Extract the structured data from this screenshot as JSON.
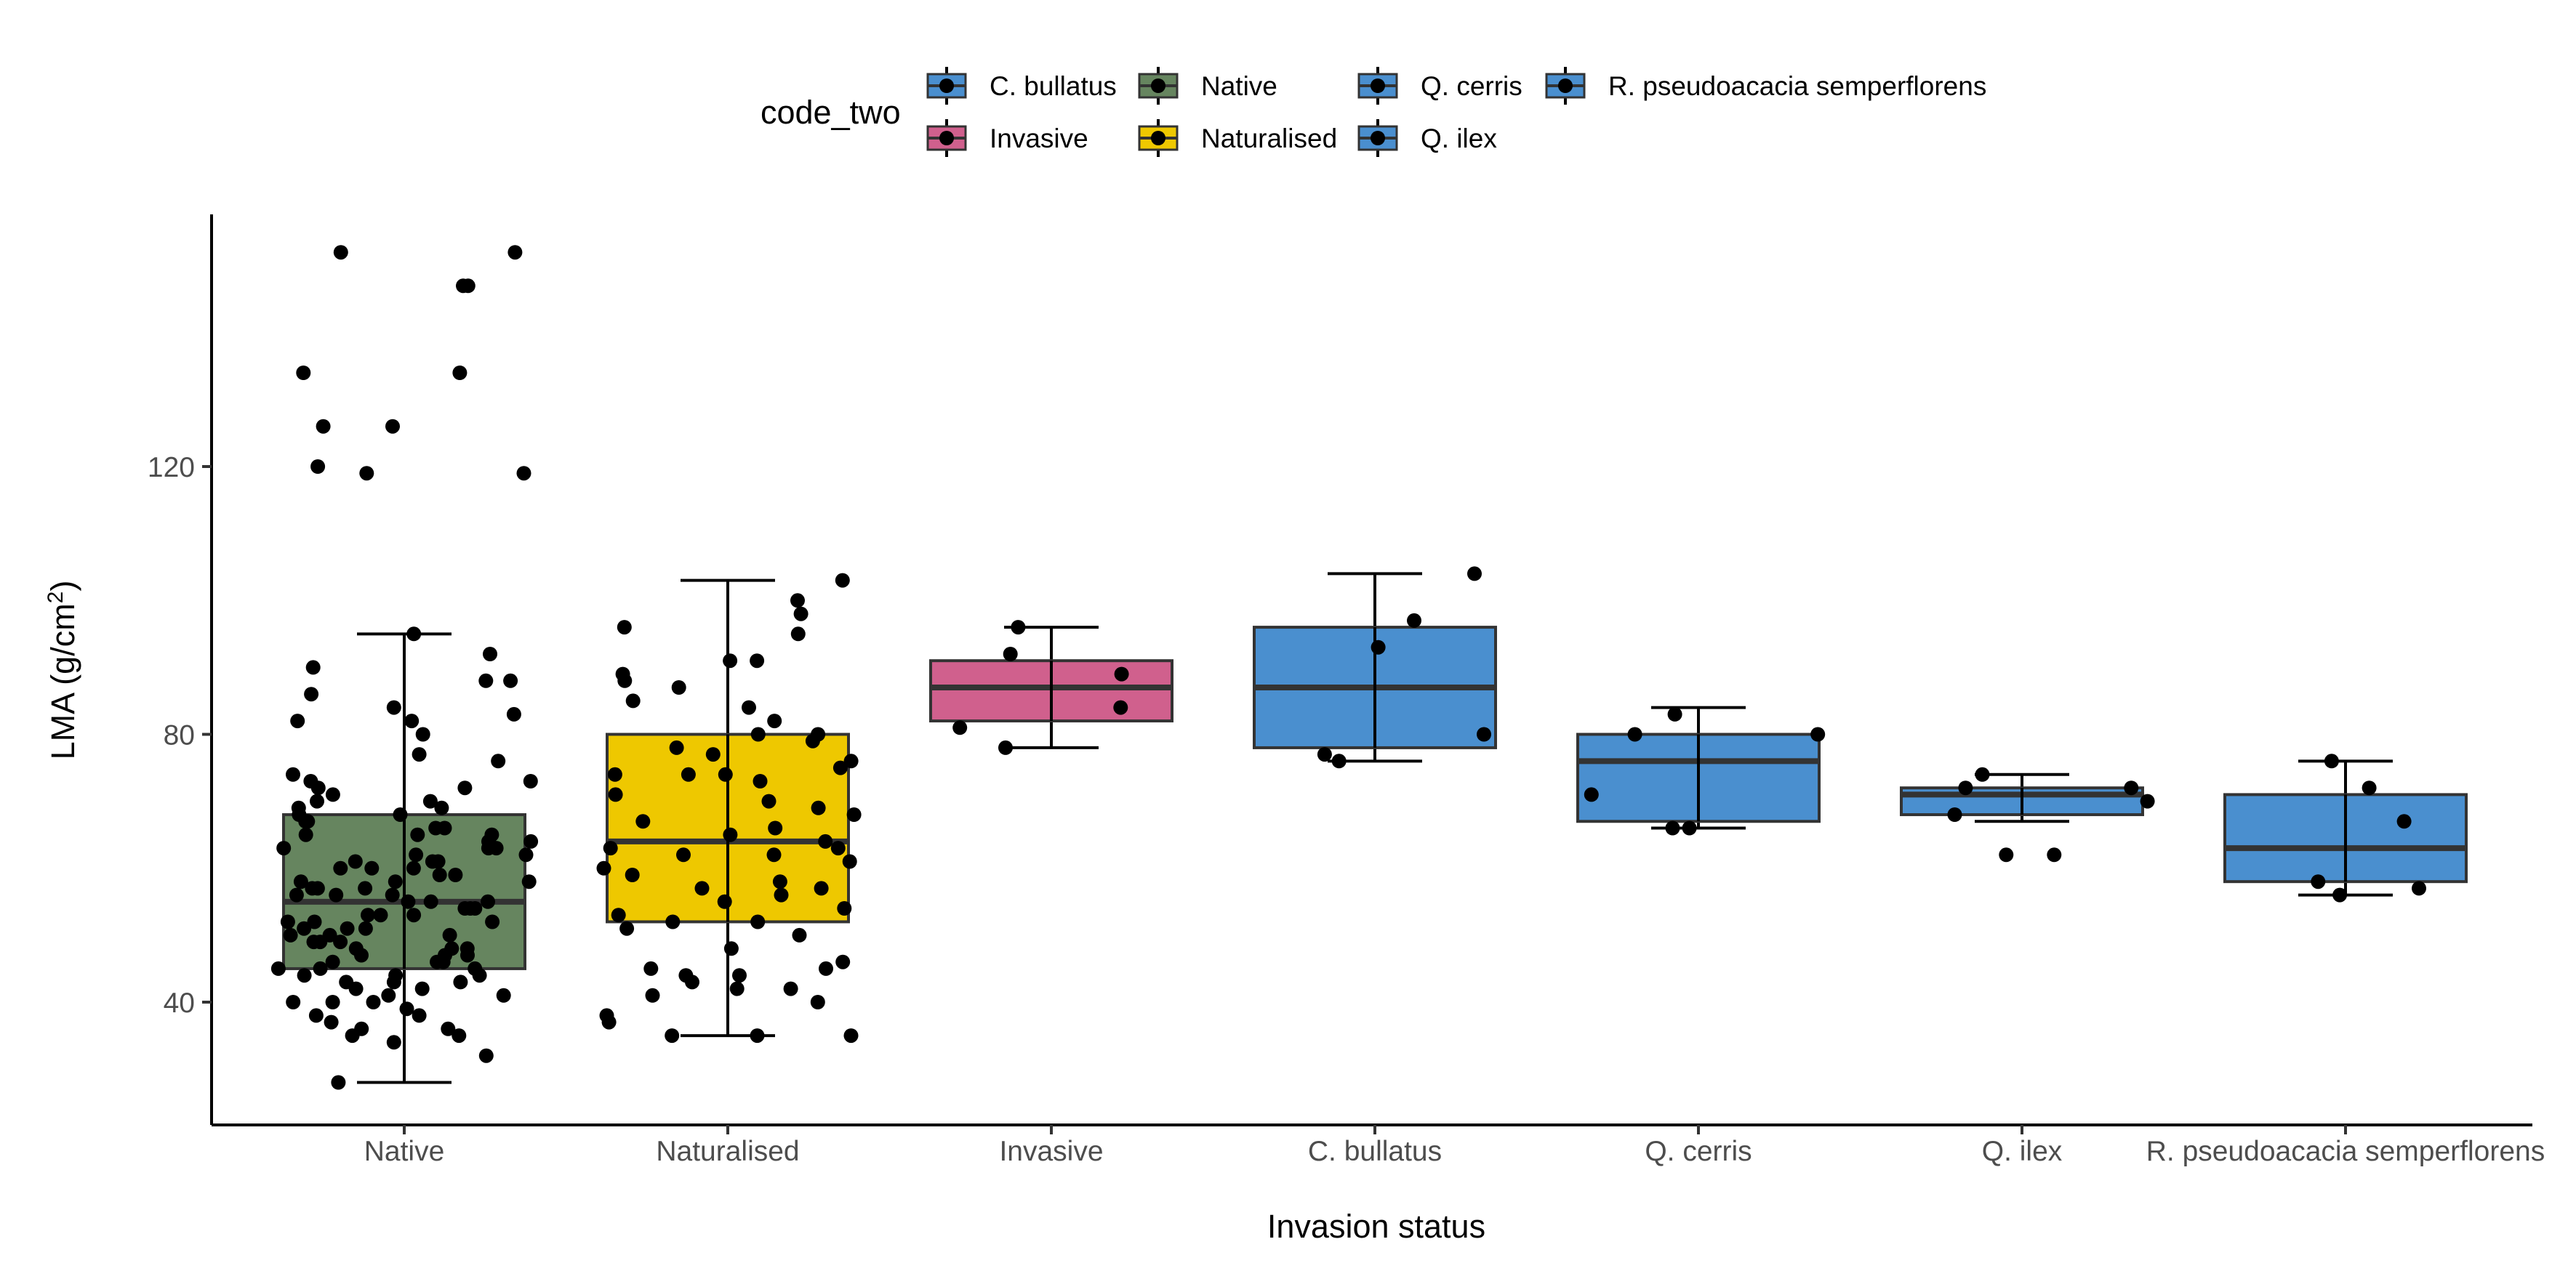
{
  "chart_data": {
    "type": "box",
    "xlabel": "Invasion status",
    "ylabel": "LMA (g/cm",
    "ylabel_superscript": "2",
    "ylabel_suffix": ")",
    "ylim": [
      22,
      153
    ],
    "yticks": [
      40,
      80,
      120
    ],
    "grid": false,
    "legend": {
      "title": "code_two",
      "position": "top",
      "entries": [
        {
          "label": "C. bullatus",
          "color": "#4a8fcf"
        },
        {
          "label": "Invasive",
          "color": "#d0608d"
        },
        {
          "label": "Native",
          "color": "#66855f"
        },
        {
          "label": "Naturalised",
          "color": "#eec800"
        },
        {
          "label": "Q. cerris",
          "color": "#4a8fcf"
        },
        {
          "label": "Q. ilex",
          "color": "#4a8fcf"
        },
        {
          "label": "R. pseudoacacia semperflorens",
          "color": "#4a8fcf"
        }
      ]
    },
    "categories": [
      "Native",
      "Naturalised",
      "Invasive",
      "C. bullatus",
      "Q. cerris",
      "Q. ilex",
      "R. pseudoacacia semperflorens"
    ],
    "boxes": [
      {
        "category": "Native",
        "color": "#66855f",
        "whisker_low": 28,
        "q1": 45,
        "median": 55,
        "q3": 68,
        "whisker_high": 95,
        "points": [
          28,
          32,
          34,
          35,
          35,
          36,
          36,
          37,
          38,
          38,
          39,
          40,
          40,
          40,
          41,
          41,
          42,
          42,
          43,
          43,
          43,
          44,
          44,
          44,
          45,
          45,
          45,
          46,
          46,
          46,
          47,
          47,
          47,
          48,
          48,
          48,
          49,
          49,
          49,
          50,
          50,
          50,
          51,
          51,
          51,
          52,
          52,
          52,
          53,
          53,
          53,
          54,
          54,
          54,
          55,
          55,
          55,
          56,
          56,
          56,
          57,
          57,
          57,
          58,
          58,
          58,
          59,
          59,
          60,
          60,
          60,
          61,
          61,
          61,
          62,
          62,
          63,
          63,
          63,
          64,
          64,
          65,
          65,
          65,
          66,
          66,
          67,
          67,
          68,
          68,
          69,
          69,
          70,
          70,
          71,
          72,
          72,
          73,
          73,
          74,
          76,
          77,
          80,
          82,
          82,
          83,
          84,
          86,
          88,
          88,
          90,
          92,
          95,
          119,
          119,
          120,
          126,
          126,
          134,
          134,
          147,
          147,
          152,
          152
        ]
      },
      {
        "category": "Naturalised",
        "color": "#eec800",
        "whisker_low": 35,
        "q1": 52,
        "median": 64,
        "q3": 80,
        "whisker_high": 103,
        "points": [
          35,
          35,
          35,
          37,
          38,
          40,
          41,
          42,
          42,
          43,
          44,
          44,
          45,
          45,
          46,
          48,
          50,
          51,
          52,
          52,
          53,
          54,
          55,
          56,
          57,
          57,
          58,
          59,
          60,
          61,
          62,
          62,
          63,
          63,
          64,
          65,
          66,
          67,
          68,
          69,
          70,
          71,
          73,
          74,
          74,
          74,
          75,
          76,
          77,
          78,
          79,
          80,
          80,
          82,
          84,
          85,
          87,
          88,
          89,
          91,
          91,
          95,
          96,
          98,
          100,
          103
        ]
      },
      {
        "category": "Invasive",
        "color": "#d0608d",
        "whisker_low": 78,
        "q1": 82,
        "median": 87,
        "q3": 91,
        "whisker_high": 96,
        "points": [
          78,
          81,
          84,
          89,
          92,
          96
        ]
      },
      {
        "category": "C. bullatus",
        "color": "#4a8fcf",
        "whisker_low": 76,
        "q1": 78,
        "median": 87,
        "q3": 96,
        "whisker_high": 104,
        "points": [
          76,
          77,
          80,
          93,
          97,
          104
        ]
      },
      {
        "category": "Q. cerris",
        "color": "#4a8fcf",
        "whisker_low": 66,
        "q1": 67,
        "median": 76,
        "q3": 80,
        "whisker_high": 84,
        "points": [
          66,
          66,
          71,
          80,
          80,
          83
        ]
      },
      {
        "category": "Q. ilex",
        "color": "#4a8fcf",
        "whisker_low": 67,
        "q1": 68,
        "median": 71,
        "q3": 72,
        "whisker_high": 74,
        "points": [
          62,
          62,
          68,
          70,
          72,
          72,
          74
        ]
      },
      {
        "category": "R. pseudoacacia semperflorens",
        "color": "#4a8fcf",
        "whisker_low": 56,
        "q1": 58,
        "median": 63,
        "q3": 71,
        "whisker_high": 76,
        "points": [
          56,
          57,
          58,
          67,
          72,
          76
        ]
      }
    ]
  }
}
